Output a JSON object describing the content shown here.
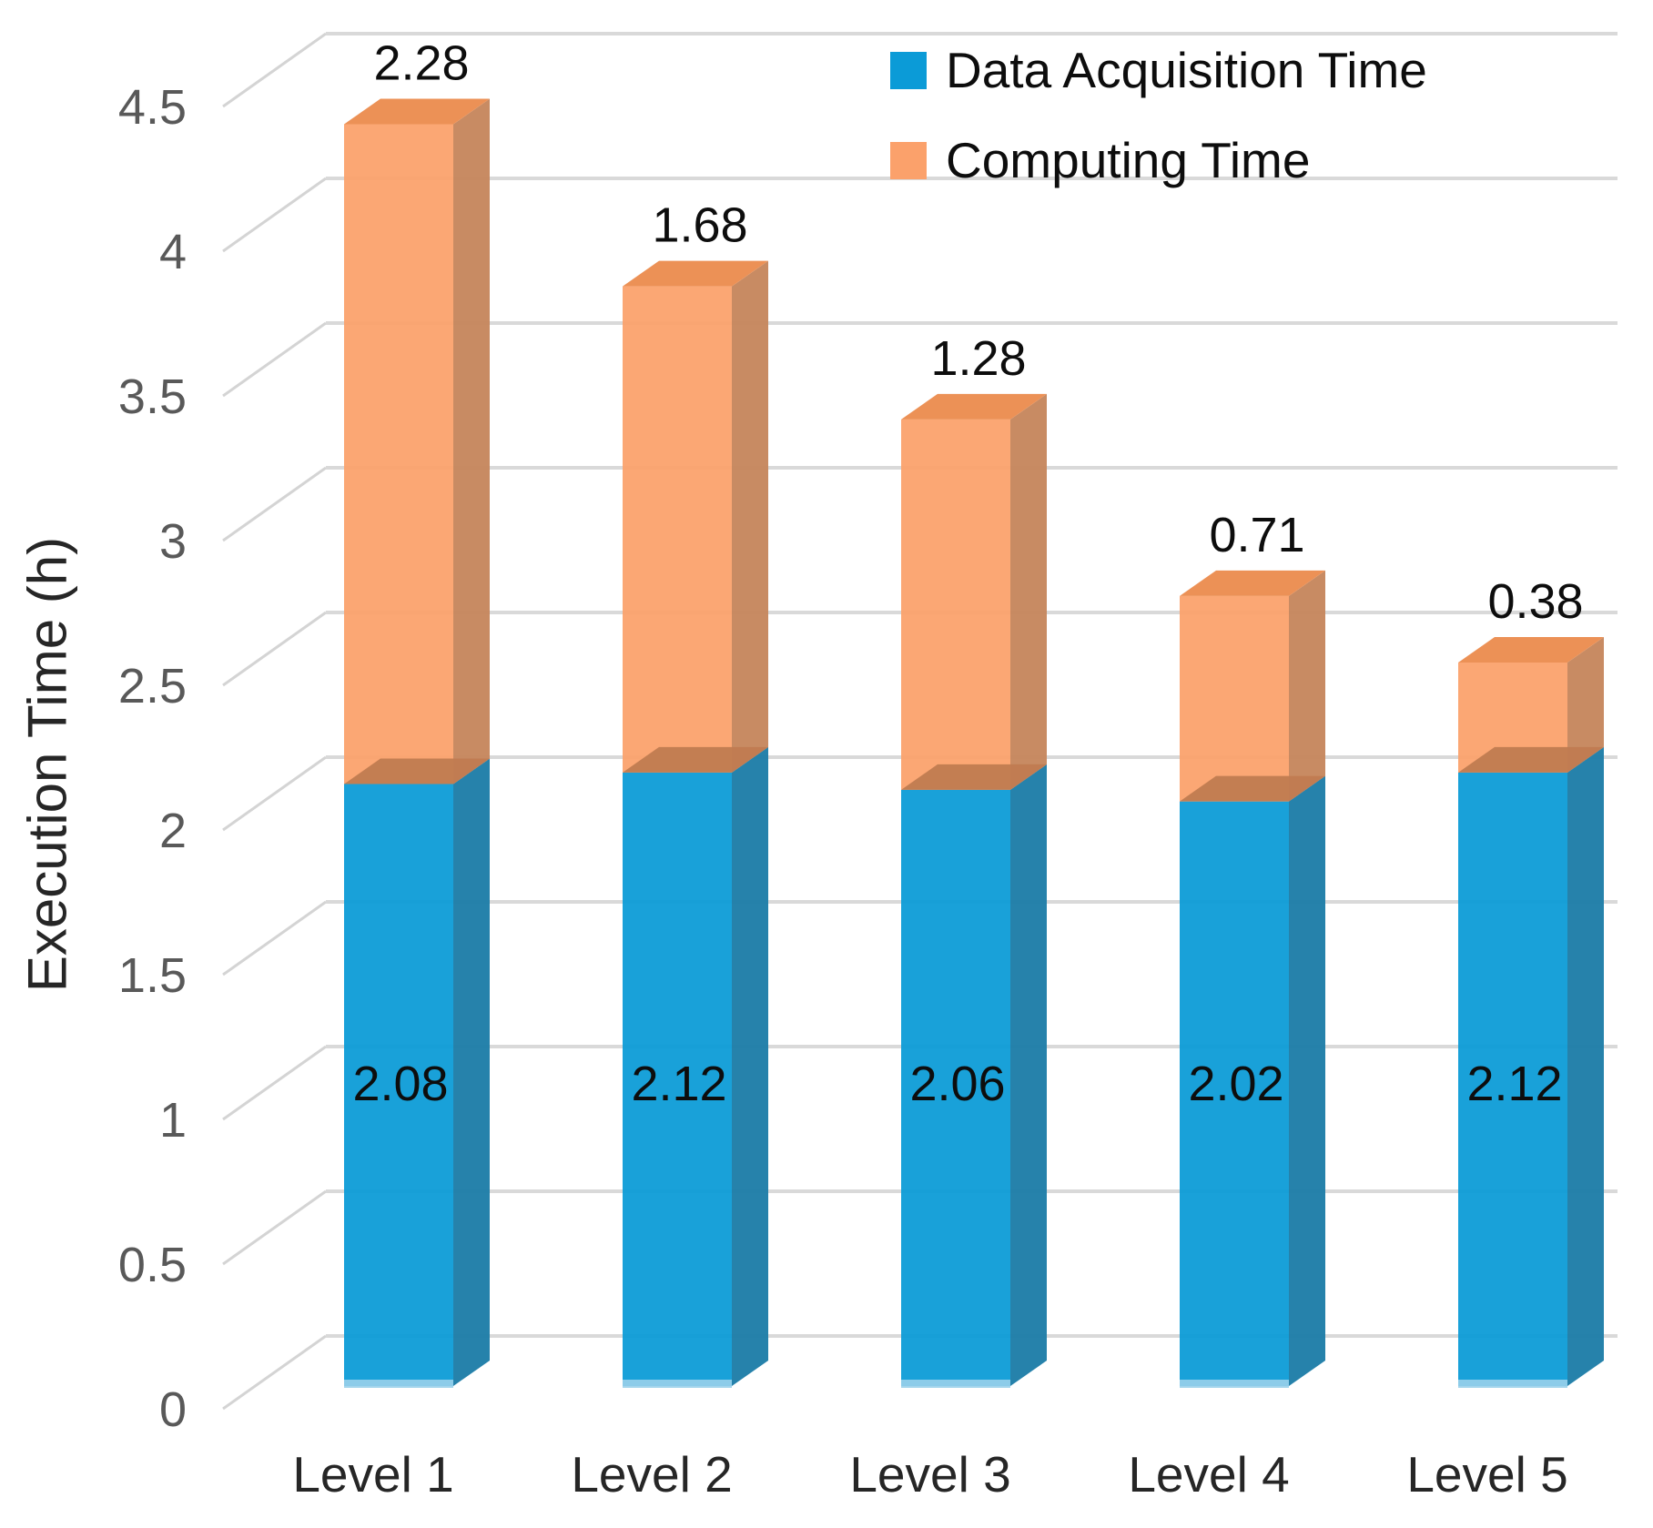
{
  "chart_data": {
    "type": "bar",
    "variant": "3d-stacked-column",
    "title": "",
    "xlabel": "",
    "ylabel": "Execution Time (h)",
    "ylim": [
      0,
      4.5
    ],
    "ytick_step": 0.5,
    "yticks": [
      "0",
      "0.5",
      "1",
      "1.5",
      "2",
      "2.5",
      "3",
      "3.5",
      "4",
      "4.5"
    ],
    "categories": [
      "Level 1",
      "Level 2",
      "Level 3",
      "Level 4",
      "Level 5"
    ],
    "series": [
      {
        "name": "Data Acquisition Time",
        "values": [
          2.08,
          2.12,
          2.06,
          2.02,
          2.12
        ],
        "labels": [
          "2.08",
          "2.12",
          "2.06",
          "2.02",
          "2.12"
        ],
        "label_placement": "inside"
      },
      {
        "name": "Computing Time",
        "values": [
          2.28,
          1.68,
          1.28,
          0.71,
          0.38
        ],
        "labels": [
          "2.28",
          "1.68",
          "1.28",
          "0.71",
          "0.38"
        ],
        "label_placement": "above"
      }
    ],
    "legend_position": "top-right",
    "grid": true,
    "style": {
      "blue_front": "#0B9BD7",
      "blue_side": "#1F7EA8",
      "blue_bottom_edge": "#9AD0EA",
      "orange_front": "#FBA16B",
      "orange_side": "#C6875E",
      "orange_top": "#EC9156",
      "junction_face": "#C17C51",
      "gridline": "#D9D9D9",
      "grid_diagonal": "#D4D4D4",
      "tick_text": "#595959",
      "category_text": "#262626",
      "value_text": "#0d0d0d"
    }
  }
}
